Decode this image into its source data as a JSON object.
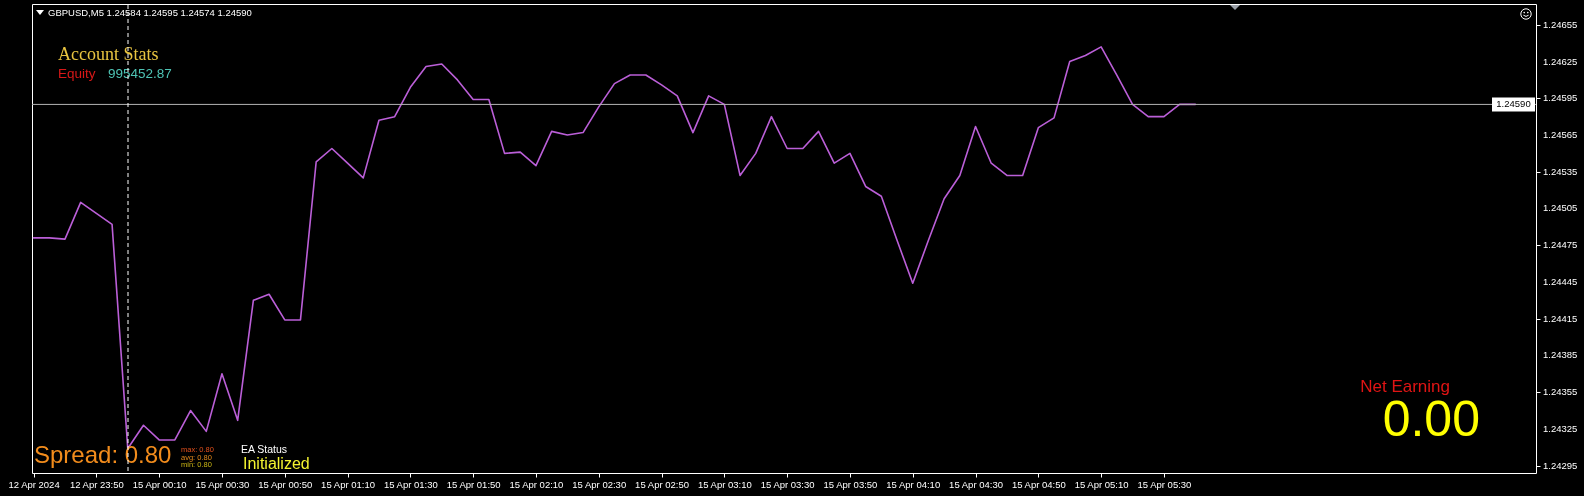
{
  "chart_data": {
    "type": "line",
    "title": "GBPUSD,M5  1.24584 1.24595 1.24574 1.24590",
    "categories": [
      "12 Apr 2024",
      null,
      null,
      null,
      "12 Apr 23:50",
      null,
      null,
      null,
      "15 Apr 00:10",
      null,
      null,
      null,
      "15 Apr 00:30",
      null,
      null,
      null,
      "15 Apr 00:50",
      null,
      null,
      null,
      "15 Apr 01:10",
      null,
      null,
      null,
      "15 Apr 01:30",
      null,
      null,
      null,
      "15 Apr 01:50",
      null,
      null,
      null,
      "15 Apr 02:10",
      null,
      null,
      null,
      "15 Apr 02:30",
      null,
      null,
      null,
      "15 Apr 02:50",
      null,
      null,
      null,
      "15 Apr 03:10",
      null,
      null,
      null,
      "15 Apr 03:30",
      null,
      null,
      null,
      "15 Apr 03:50",
      null,
      null,
      null,
      "15 Apr 04:10",
      null,
      null,
      null,
      "15 Apr 04:30",
      null,
      null,
      null,
      "15 Apr 04:50",
      null,
      null,
      null,
      "15 Apr 05:10",
      null,
      null,
      null,
      "15 Apr 05:30",
      null,
      null
    ],
    "ylim": [
      1.24289,
      1.24672
    ],
    "yticks": [
      1.24295,
      1.24325,
      1.24355,
      1.24385,
      1.24415,
      1.24445,
      1.24475,
      1.24505,
      1.24535,
      1.24565,
      1.24595,
      1.24625,
      1.24655
    ],
    "series": [
      {
        "color": "#bb5fd8",
        "values": [
          1.24481,
          1.24481,
          1.2448,
          1.2451,
          1.24501,
          1.24492,
          1.24309,
          1.24328,
          1.24316,
          1.24316,
          1.2434,
          1.24323,
          1.2437,
          1.24332,
          1.2443,
          1.24435,
          1.24414,
          1.24414,
          1.24543,
          1.24554,
          1.24542,
          1.2453,
          1.24577,
          1.2458,
          1.24604,
          1.24621,
          1.24623,
          1.2461,
          1.24594,
          1.24594,
          1.2455,
          1.24551,
          1.2454,
          1.24568,
          1.24565,
          1.24567,
          1.24588,
          1.24607,
          1.24614,
          1.24614,
          1.24606,
          1.24597,
          1.24567,
          1.24597,
          1.2459,
          1.24532,
          1.2455,
          1.2458,
          1.24554,
          1.24554,
          1.24568,
          1.24542,
          1.2455,
          1.24523,
          1.24515,
          1.24479,
          1.24444,
          1.24479,
          1.24513,
          1.24532,
          1.24572,
          1.24542,
          1.24532,
          1.24532,
          1.24571,
          1.24579,
          1.24625,
          1.2463,
          1.24637,
          1.24614,
          1.2459,
          1.2458,
          1.2458,
          1.2459,
          1.2459
        ]
      }
    ],
    "ref_lines": [
      {
        "axis": "y",
        "value": 1.2459,
        "label": "1.24590",
        "color": "#b4b4b4"
      }
    ],
    "annotations": [
      "Account Stats",
      "Equity",
      "995452.87",
      "Spread: 0.80",
      "max: 0.80",
      "avg: 0.80",
      "min: 0.80",
      "EA Status",
      "Initialized",
      "Net Earning",
      "0.00"
    ],
    "grid": false,
    "legend": false,
    "marker": "none",
    "line_style": "solid"
  }
}
